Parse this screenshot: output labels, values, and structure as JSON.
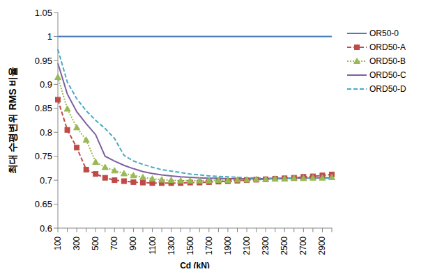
{
  "chart_data": {
    "type": "line",
    "x_label": "Cd (kN)",
    "y_label": "최대 수평변위 RMS 비율",
    "categories": [
      "100",
      null,
      "300",
      null,
      "500",
      null,
      "700",
      null,
      "900",
      null,
      "1100",
      null,
      "1300",
      null,
      "1500",
      null,
      "1700",
      null,
      "1900",
      null,
      "2100",
      null,
      "2300",
      null,
      "2500",
      null,
      "2700",
      null,
      "2900",
      null
    ],
    "ylim": [
      0.6,
      1.05
    ],
    "yticks": [
      0.6,
      0.65,
      0.7,
      0.75,
      0.8,
      0.85,
      0.9,
      0.95,
      1,
      1.05
    ],
    "grid": false,
    "legend": "right",
    "series": [
      {
        "name": "OR50-0",
        "color": "#4a7ebb",
        "marker": "none",
        "line_style": "solid",
        "values": [
          1,
          1,
          1,
          1,
          1,
          1,
          1,
          1,
          1,
          1,
          1,
          1,
          1,
          1,
          1,
          1,
          1,
          1,
          1,
          1,
          1,
          1,
          1,
          1,
          1,
          1,
          1,
          1,
          1,
          1
        ]
      },
      {
        "name": "ORD50-A",
        "color": "#be4b48",
        "marker": "square",
        "line_style": "dashed",
        "values": [
          0.868,
          0.805,
          0.768,
          0.722,
          0.713,
          0.705,
          0.7,
          0.698,
          0.696,
          0.695,
          0.694,
          0.694,
          0.694,
          0.694,
          0.695,
          0.695,
          0.696,
          0.697,
          0.698,
          0.699,
          0.7,
          0.701,
          0.702,
          0.703,
          0.704,
          0.705,
          0.707,
          0.708,
          0.71,
          0.712
        ]
      },
      {
        "name": "ORD50-B",
        "color": "#98b954",
        "marker": "triangle",
        "line_style": "dotted",
        "values": [
          0.915,
          0.849,
          0.81,
          0.784,
          0.738,
          0.727,
          0.72,
          0.714,
          0.71,
          0.706,
          0.703,
          0.701,
          0.7,
          0.699,
          0.699,
          0.699,
          0.699,
          0.7,
          0.7,
          0.701,
          0.701,
          0.702,
          0.702,
          0.703,
          0.703,
          0.704,
          0.704,
          0.705,
          0.705,
          0.706
        ]
      },
      {
        "name": "ORD50-C",
        "color": "#7d60a0",
        "marker": "none",
        "line_style": "solid",
        "values": [
          0.944,
          0.88,
          0.843,
          0.818,
          0.795,
          0.75,
          0.74,
          0.731,
          0.724,
          0.718,
          0.714,
          0.711,
          0.709,
          0.707,
          0.706,
          0.705,
          0.704,
          0.704,
          0.703,
          0.703,
          0.703,
          0.703,
          0.703,
          0.703,
          0.704,
          0.704,
          0.704,
          0.705,
          0.705,
          0.705
        ]
      },
      {
        "name": "ORD50-D",
        "color": "#46aac5",
        "marker": "none",
        "line_style": "dashed",
        "values": [
          0.973,
          0.905,
          0.87,
          0.845,
          0.825,
          0.808,
          0.787,
          0.752,
          0.74,
          0.733,
          0.727,
          0.722,
          0.719,
          0.716,
          0.713,
          0.711,
          0.709,
          0.708,
          0.707,
          0.706,
          0.705,
          0.705,
          0.704,
          0.704,
          0.704,
          0.704,
          0.704,
          0.704,
          0.704,
          0.704
        ]
      }
    ]
  }
}
